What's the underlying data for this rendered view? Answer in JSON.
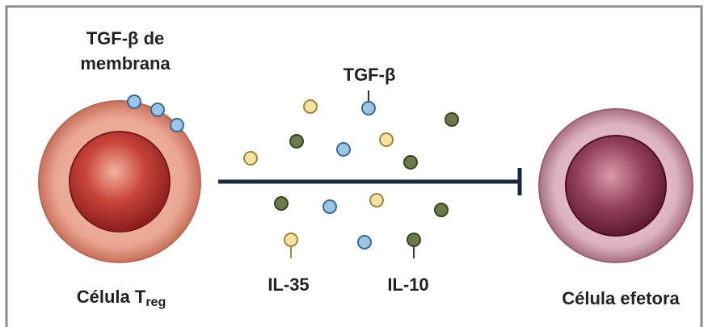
{
  "labels": {
    "membrane_tgf": [
      "TGF-β de",
      "membrana"
    ],
    "tgf": "TGF-β",
    "treg_cell": {
      "text": "Célula T",
      "subscript": "reg"
    },
    "il35": "IL-35",
    "il10": "IL-10",
    "effector_cell": "Célula efetora"
  }
}
